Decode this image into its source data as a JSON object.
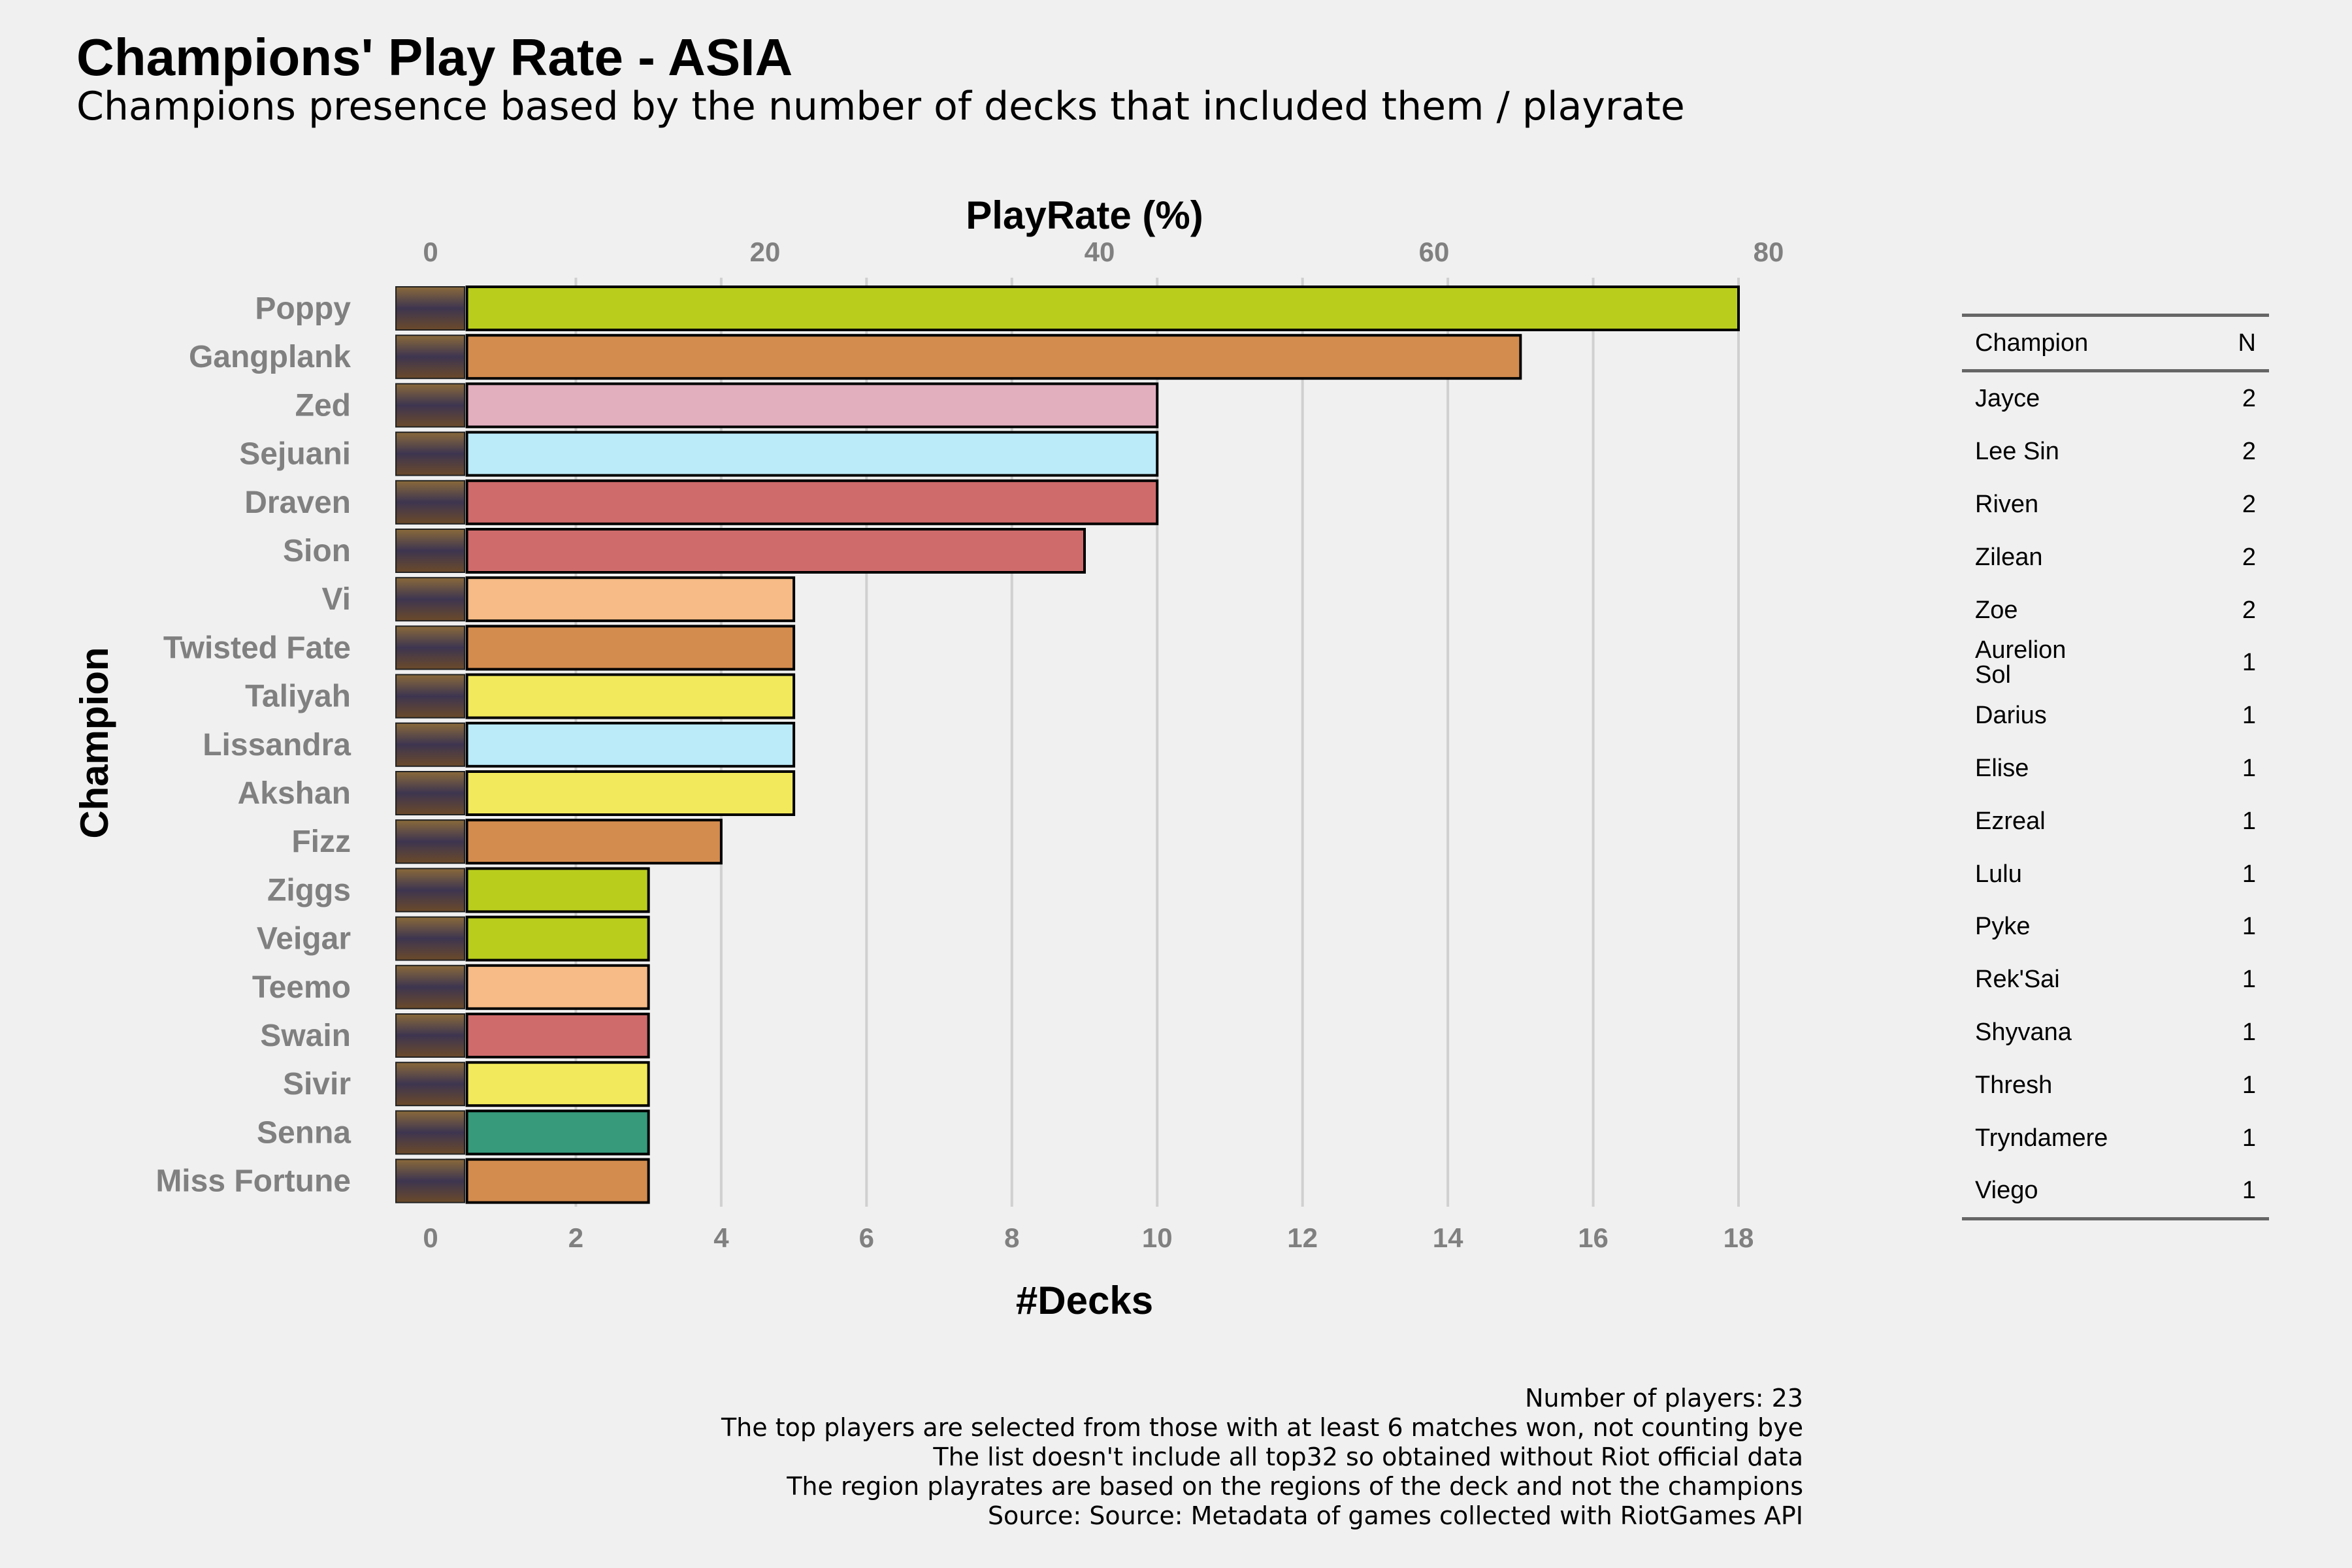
{
  "title": "Champions' Play Rate - ASIA",
  "subtitle": "Champions presence based by the number of decks that included them / playrate",
  "chart_data": {
    "type": "bar",
    "orientation": "horizontal",
    "top_axis_label": "PlayRate (%)",
    "top_axis_ticks": [
      0,
      20,
      40,
      60,
      80
    ],
    "xlabel": "#Decks",
    "ylabel": "Champion",
    "x_ticks": [
      0,
      2,
      4,
      6,
      8,
      10,
      12,
      14,
      16,
      18
    ],
    "xlim": [
      0,
      18
    ],
    "grid": true,
    "categories": [
      "Poppy",
      "Gangplank",
      "Zed",
      "Sejuani",
      "Draven",
      "Sion",
      "Vi",
      "Twisted Fate",
      "Taliyah",
      "Lissandra",
      "Akshan",
      "Fizz",
      "Ziggs",
      "Veigar",
      "Teemo",
      "Swain",
      "Sivir",
      "Senna",
      "Miss Fortune"
    ],
    "values": [
      18,
      15,
      10,
      10,
      10,
      9,
      5,
      5,
      5,
      5,
      5,
      4,
      3,
      3,
      3,
      3,
      3,
      3,
      3
    ],
    "colors": [
      "#b9cd1d",
      "#d38c4e",
      "#e2afbf",
      "#bbeaf8",
      "#cf6b6b",
      "#cf6b6b",
      "#f6bb86",
      "#d38c4e",
      "#f2e95c",
      "#bbeaf8",
      "#f2e95c",
      "#d38c4e",
      "#b9cd1d",
      "#b9cd1d",
      "#f6bb86",
      "#cf6b6b",
      "#f2e95c",
      "#369a7b",
      "#d38c4e"
    ]
  },
  "table": {
    "headers": [
      "Champion",
      "N"
    ],
    "rows": [
      {
        "champion": "Jayce",
        "n": "2"
      },
      {
        "champion": "Lee Sin",
        "n": "2"
      },
      {
        "champion": "Riven",
        "n": "2"
      },
      {
        "champion": "Zilean",
        "n": "2"
      },
      {
        "champion": "Zoe",
        "n": "2"
      },
      {
        "champion": "Aurelion Sol",
        "n": "1"
      },
      {
        "champion": "Darius",
        "n": "1"
      },
      {
        "champion": "Elise",
        "n": "1"
      },
      {
        "champion": "Ezreal",
        "n": "1"
      },
      {
        "champion": "Lulu",
        "n": "1"
      },
      {
        "champion": "Pyke",
        "n": "1"
      },
      {
        "champion": "Rek'Sai",
        "n": "1"
      },
      {
        "champion": "Shyvana",
        "n": "1"
      },
      {
        "champion": "Thresh",
        "n": "1"
      },
      {
        "champion": "Tryndamere",
        "n": "1"
      },
      {
        "champion": "Viego",
        "n": "1"
      }
    ]
  },
  "caption": [
    "Number of players: 23",
    "The top players are selected from those with at least 6 matches won, not counting bye",
    "The list doesn't include all top32 so obtained without Riot official data",
    "The region playrates are based on the regions of the deck and not the champions",
    "Source: Source: Metadata of games collected with RiotGames API"
  ]
}
